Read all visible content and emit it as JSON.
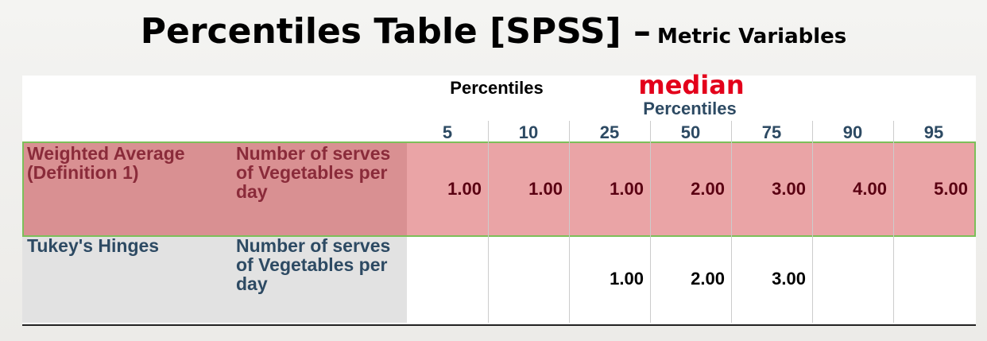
{
  "header": {
    "title": "Percentiles Table [SPSS] –",
    "subtitle": "Metric Variables"
  },
  "table": {
    "caption": "Percentiles",
    "annotation": "median",
    "group_header": "Percentiles",
    "columns": [
      "5",
      "10",
      "25",
      "50",
      "75",
      "90",
      "95"
    ],
    "rows": [
      {
        "method": "Weighted Average (Definition 1)",
        "variable": "Number of serves of Vegetables per day",
        "values": [
          "1.00",
          "1.00",
          "1.00",
          "2.00",
          "3.00",
          "4.00",
          "5.00"
        ]
      },
      {
        "method": "Tukey's Hinges",
        "variable": "Number of serves of Vegetables per day",
        "values": [
          null,
          null,
          "1.00",
          "2.00",
          "3.00",
          null,
          null
        ]
      }
    ]
  }
}
